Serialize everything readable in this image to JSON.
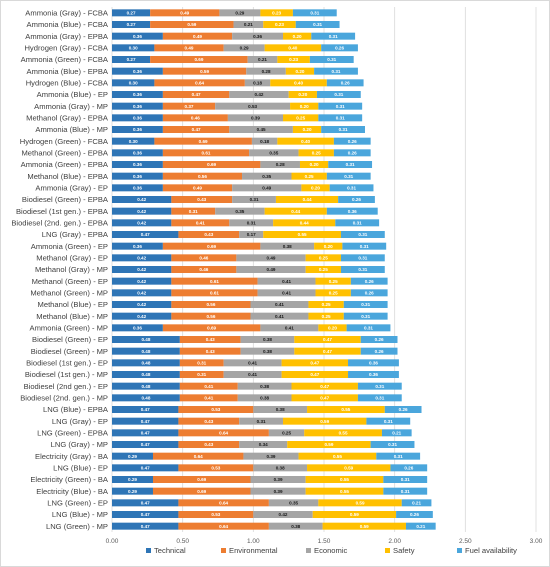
{
  "chart_data": {
    "type": "bar",
    "orientation": "horizontal",
    "stacked": true,
    "categories": [
      "Ammonia (Gray) - FCBA",
      "Ammonia (Blue) - FCBA",
      "Ammonia (Gray) - EPBA",
      "Hydrogen (Gray) - FCBA",
      "Ammonia (Green) - FCBA",
      "Ammonia (Blue) - EPBA",
      "Hydrogen (Blue) - FCBA",
      "Ammonia (Blue) - EP",
      "Ammonia (Gray) - MP",
      "Methanol (Gray) - EPBA",
      "Ammonia (Blue) - MP",
      "Hydrogen (Green) - FCBA",
      "Methanol (Green) - EPBA",
      "Ammonia (Green) - EPBA",
      "Methanol (Blue) - EPBA",
      "Ammonia (Gray) - EP",
      "Biodiesel  (Green) - EPBA",
      "Biodiesel (1st gen.) - EPBA",
      "Biodiesel (2nd. gen.) - EPBA",
      "LNG (Gray) - EPBA",
      "Ammonia (Green) - EP",
      "Methanol (Gray) - EP",
      "Methanol (Gray) - MP",
      "Methanol (Green) - EP",
      "Methanol (Green) - MP",
      "Methanol (Blue) - EP",
      "Methanol (Blue) - MP",
      "Ammonia (Green) - MP",
      "Biodiesel  (Green) - EP",
      "Biodiesel  (Green) - MP",
      "Biodiesel (1st gen.) - EP",
      "Biodiesel (1st gen.) - MP",
      "Biodiesel (2nd gen.) - EP",
      "Biodiesel (2nd. gen.) - MP",
      "LNG (Blue) - EPBA",
      "LNG (Gray) - EP",
      "LNG (Green) - EPBA",
      "LNG (Gray) - MP",
      "Electricity (Gray) - BA",
      "LNG (Blue) - EP",
      "Electricity (Green) - BA",
      "Electricity (Blue) - BA",
      "LNG (Green) - EP",
      "LNG (Blue) - MP",
      "LNG (Green) - MP"
    ],
    "series": [
      {
        "name": "Technical",
        "color": "#2e75b6",
        "values": [
          0.27,
          0.27,
          0.36,
          0.3,
          0.27,
          0.36,
          0.3,
          0.36,
          0.36,
          0.36,
          0.36,
          0.3,
          0.36,
          0.36,
          0.36,
          0.36,
          0.42,
          0.42,
          0.42,
          0.47,
          0.36,
          0.42,
          0.42,
          0.42,
          0.42,
          0.42,
          0.42,
          0.36,
          0.48,
          0.48,
          0.48,
          0.48,
          0.48,
          0.48,
          0.47,
          0.47,
          0.47,
          0.47,
          0.29,
          0.47,
          0.29,
          0.29,
          0.47,
          0.47,
          0.47
        ]
      },
      {
        "name": "Environmental",
        "color": "#ed7d31",
        "values": [
          0.49,
          0.59,
          0.49,
          0.49,
          0.69,
          0.59,
          0.64,
          0.47,
          0.37,
          0.46,
          0.47,
          0.69,
          0.61,
          0.69,
          0.56,
          0.49,
          0.43,
          0.31,
          0.41,
          0.43,
          0.69,
          0.46,
          0.46,
          0.61,
          0.61,
          0.56,
          0.56,
          0.69,
          0.43,
          0.43,
          0.31,
          0.31,
          0.41,
          0.41,
          0.53,
          0.43,
          0.64,
          0.43,
          0.64,
          0.53,
          0.69,
          0.69,
          0.64,
          0.53,
          0.64
        ]
      },
      {
        "name": "Economic",
        "color": "#a5a5a5",
        "values": [
          0.29,
          0.21,
          0.36,
          0.29,
          0.21,
          0.28,
          0.18,
          0.42,
          0.53,
          0.39,
          0.45,
          0.18,
          0.35,
          0.28,
          0.35,
          0.49,
          0.31,
          0.35,
          0.31,
          0.17,
          0.38,
          0.49,
          0.49,
          0.41,
          0.41,
          0.41,
          0.41,
          0.41,
          0.38,
          0.38,
          0.41,
          0.41,
          0.38,
          0.38,
          0.38,
          0.31,
          0.25,
          0.34,
          0.39,
          0.38,
          0.39,
          0.39,
          0.35,
          0.42,
          0.38
        ]
      },
      {
        "name": "Safety",
        "color": "#ffc000",
        "values": [
          0.23,
          0.23,
          0.2,
          0.4,
          0.23,
          0.2,
          0.4,
          0.2,
          0.2,
          0.25,
          0.2,
          0.4,
          0.25,
          0.2,
          0.25,
          0.2,
          0.44,
          0.44,
          0.44,
          0.55,
          0.2,
          0.25,
          0.25,
          0.25,
          0.25,
          0.25,
          0.25,
          0.2,
          0.47,
          0.47,
          0.47,
          0.47,
          0.47,
          0.47,
          0.55,
          0.59,
          0.55,
          0.59,
          0.55,
          0.59,
          0.55,
          0.55,
          0.59,
          0.59,
          0.59
        ]
      },
      {
        "name": "Fuel availability",
        "color": "#4aa6dc",
        "values": [
          0.31,
          0.31,
          0.31,
          0.26,
          0.31,
          0.31,
          0.26,
          0.31,
          0.31,
          0.31,
          0.31,
          0.26,
          0.26,
          0.31,
          0.31,
          0.31,
          0.26,
          0.36,
          0.31,
          0.31,
          0.31,
          0.31,
          0.31,
          0.26,
          0.26,
          0.31,
          0.31,
          0.31,
          0.26,
          0.26,
          0.36,
          0.36,
          0.31,
          0.31,
          0.26,
          0.31,
          0.21,
          0.31,
          0.31,
          0.26,
          0.31,
          0.31,
          0.21,
          0.26,
          0.21
        ]
      }
    ],
    "xlim": [
      0,
      3
    ],
    "xticks": [
      "0.00",
      "0.50",
      "1.00",
      "1.50",
      "2.00",
      "2.50",
      "3.00"
    ],
    "grid": true,
    "legend_position": "bottom"
  }
}
